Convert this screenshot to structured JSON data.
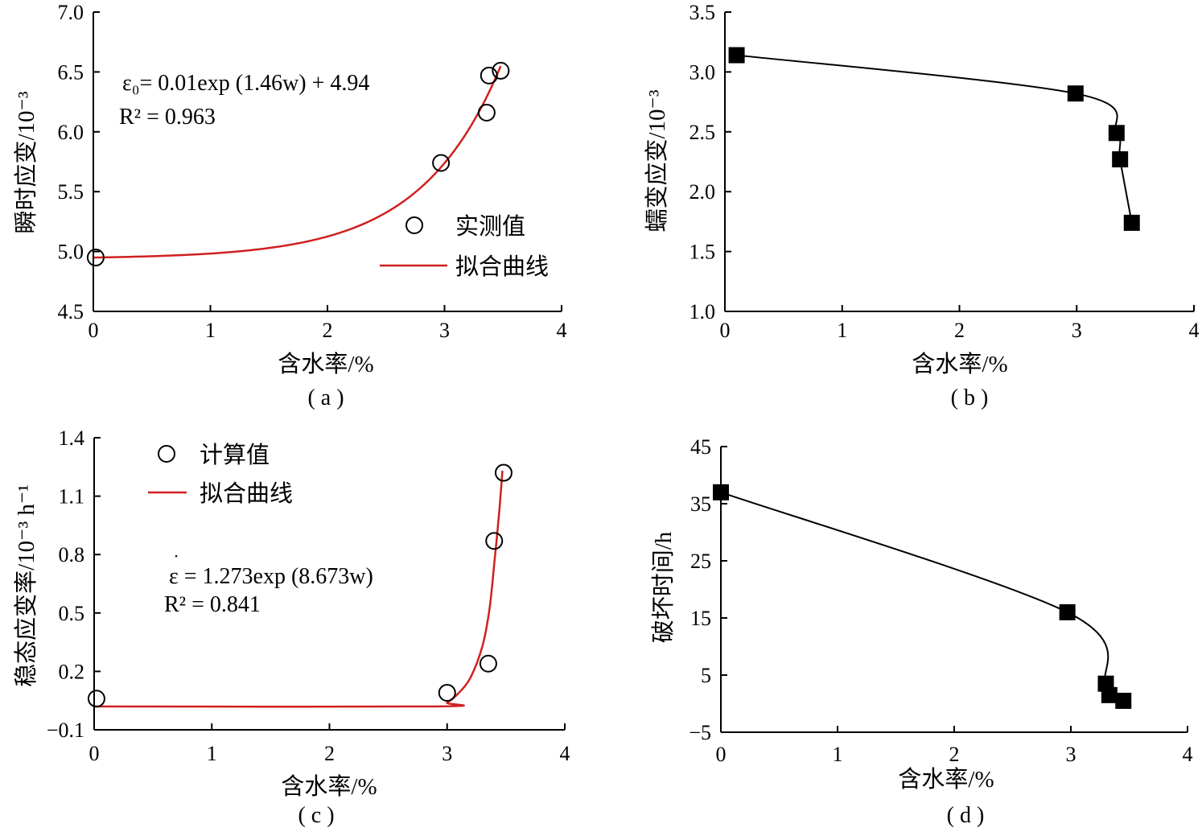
{
  "figure": {
    "colors": {
      "fit": "#d0201f",
      "line": "#000000",
      "marker_fill": "#000000",
      "axis": "#000000"
    }
  },
  "chart_data": [
    {
      "id": "a",
      "type": "scatter",
      "panel_label": "( a )",
      "xlabel": "含水率/%",
      "ylabel": "瞬时应变/10⁻³",
      "xlim": [
        0,
        4
      ],
      "ylim": [
        4.5,
        7.0
      ],
      "xticks": [
        "0",
        "1",
        "2",
        "3",
        "4"
      ],
      "yticks": [
        "4.5",
        "5.0",
        "5.5",
        "6.0",
        "6.5",
        "7.0"
      ],
      "series": [
        {
          "name": "实测值",
          "kind": "points",
          "marker": "open-circle",
          "x": [
            0.02,
            2.97,
            3.36,
            3.38,
            3.48
          ],
          "y": [
            4.95,
            5.74,
            6.16,
            6.47,
            6.51
          ]
        },
        {
          "name": "拟合曲线",
          "kind": "fit",
          "model": "exp",
          "a": 0.01,
          "b": 1.46,
          "c": 4.94,
          "domain": [
            0,
            3.48
          ]
        }
      ],
      "annotation": {
        "equation": "ε₀= 0.01exp (1.46w) + 4.94",
        "r2": "R² = 0.963"
      },
      "legend": {
        "position": "right",
        "entries": [
          "实测值",
          "拟合曲线"
        ]
      }
    },
    {
      "id": "b",
      "type": "line",
      "panel_label": "( b )",
      "xlabel": "含水率/%",
      "ylabel": "蠕变应变/10⁻³",
      "xlim": [
        0,
        4
      ],
      "ylim": [
        1.0,
        3.5
      ],
      "xticks": [
        "0",
        "1",
        "2",
        "3",
        "4"
      ],
      "yticks": [
        "1.0",
        "1.5",
        "2.0",
        "2.5",
        "3.0",
        "3.5"
      ],
      "series": [
        {
          "kind": "line",
          "marker": "filled-square",
          "x": [
            0.1,
            2.99,
            3.34,
            3.37,
            3.47
          ],
          "y": [
            3.14,
            2.82,
            2.49,
            2.27,
            1.74
          ]
        }
      ]
    },
    {
      "id": "c",
      "type": "scatter",
      "panel_label": "( c )",
      "xlabel": "含水率/%",
      "ylabel": "稳态应变率/10⁻³ h⁻¹",
      "xlim": [
        0,
        4
      ],
      "ylim": [
        -0.1,
        1.4
      ],
      "xticks": [
        "0",
        "1",
        "2",
        "3",
        "4"
      ],
      "yticks": [
        "−0.1",
        "0.2",
        "0.5",
        "0.8",
        "1.1",
        "1.4"
      ],
      "series": [
        {
          "name": "计算值",
          "kind": "points",
          "marker": "open-circle",
          "x": [
            0.02,
            3.0,
            3.35,
            3.4,
            3.48
          ],
          "y": [
            0.06,
            0.09,
            0.24,
            0.87,
            1.22
          ]
        },
        {
          "name": "拟合曲线",
          "kind": "fit",
          "points": [
            [
              0,
              0.02
            ],
            [
              2.9,
              0.02
            ],
            [
              3.0,
              0.04
            ],
            [
              3.1,
              0.09
            ],
            [
              3.2,
              0.17
            ],
            [
              3.3,
              0.33
            ],
            [
              3.36,
              0.52
            ],
            [
              3.4,
              0.75
            ],
            [
              3.44,
              1.0
            ],
            [
              3.47,
              1.23
            ]
          ]
        }
      ],
      "annotation": {
        "equation": "ε = 1.273exp (8.673w)",
        "r2": "R² = 0.841"
      },
      "legend": {
        "position": "top-left",
        "entries": [
          "计算值",
          "拟合曲线"
        ]
      }
    },
    {
      "id": "d",
      "type": "line",
      "panel_label": "( d )",
      "xlabel": "含水率/%",
      "ylabel": "破坏时间/h",
      "xlim": [
        0,
        4
      ],
      "ylim": [
        -5,
        45
      ],
      "xticks": [
        "0",
        "1",
        "2",
        "3",
        "4"
      ],
      "yticks": [
        "−5",
        "5",
        "15",
        "25",
        "35",
        "45"
      ],
      "series": [
        {
          "kind": "line",
          "marker": "filled-square",
          "x": [
            0.0,
            2.97,
            3.3,
            3.33,
            3.45
          ],
          "y": [
            37,
            16,
            3.5,
            1.5,
            0.5
          ]
        }
      ]
    }
  ]
}
